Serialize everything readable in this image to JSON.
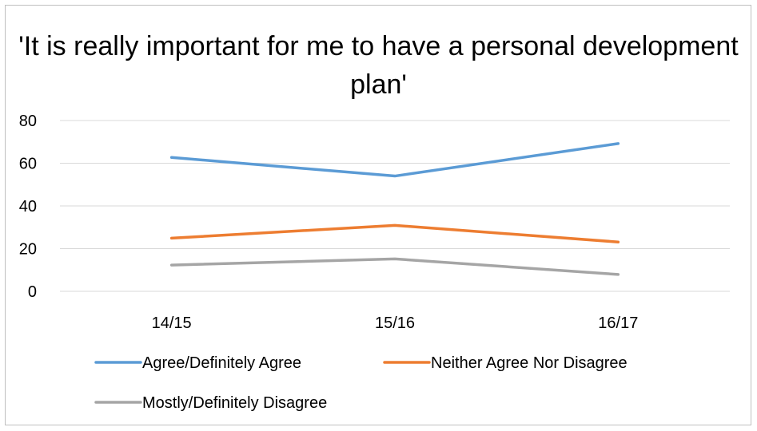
{
  "chart_data": {
    "type": "line",
    "title": "'It is really important for me to have a personal development plan'",
    "categories": [
      "14/15",
      "15/16",
      "16/17"
    ],
    "ylim": [
      0,
      80
    ],
    "yticks": [
      0,
      20,
      40,
      60,
      80
    ],
    "grid": true,
    "legend_position": "bottom",
    "series": [
      {
        "name": "Agree/Definitely Agree",
        "values": [
          62.7,
          54.0,
          69.2
        ],
        "color": "#5b9bd5"
      },
      {
        "name": "Neither Agree Nor Disagree",
        "values": [
          24.9,
          30.9,
          23.1
        ],
        "color": "#ed7d31"
      },
      {
        "name": "Mostly/Definitely Disagree",
        "values": [
          12.3,
          15.2,
          7.9
        ],
        "color": "#a5a5a5"
      }
    ]
  }
}
